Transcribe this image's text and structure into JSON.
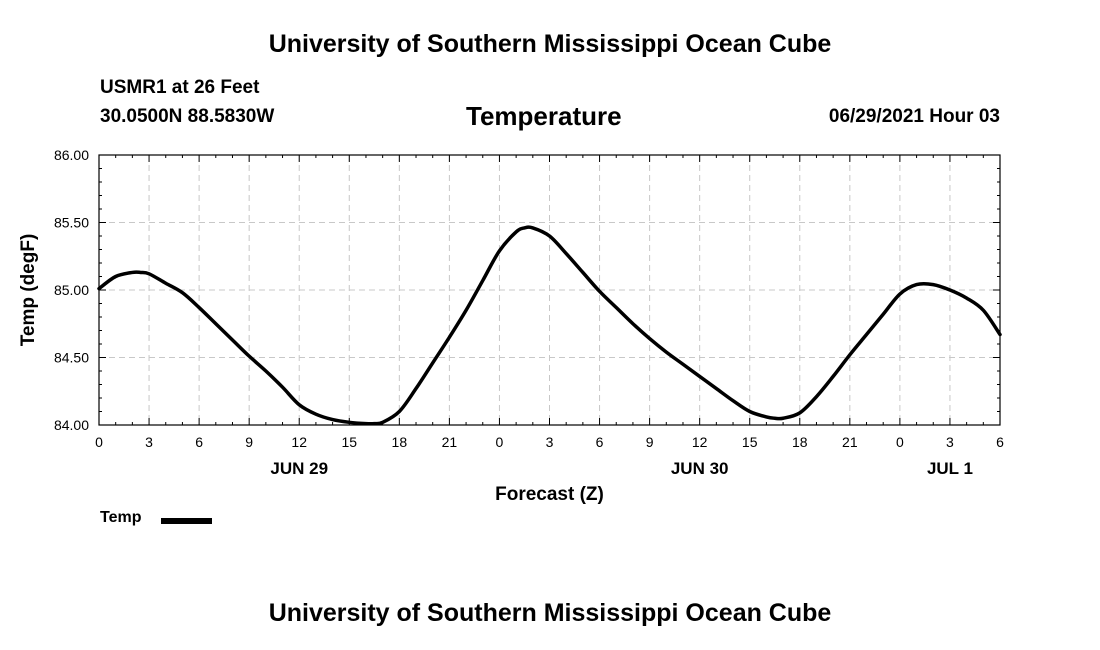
{
  "header": {
    "title": "University of Southern Mississippi Ocean Cube",
    "station": "USMR1 at 26 Feet",
    "coords": "30.0500N  88.5830W",
    "variable": "Temperature",
    "timestamp": "06/29/2021 Hour 03"
  },
  "footer": {
    "title": "University of Southern Mississippi Ocean Cube"
  },
  "legend": {
    "label": "Temp"
  },
  "chart_data": {
    "type": "line",
    "xlabel": "Forecast (Z)",
    "ylabel": "Temp (degF)",
    "xlim": [
      0,
      54
    ],
    "ylim": [
      84.0,
      86.0
    ],
    "yticks": [
      "84.00",
      "84.50",
      "85.00",
      "85.50",
      "86.00"
    ],
    "xticks": [
      "0",
      "3",
      "6",
      "9",
      "12",
      "15",
      "18",
      "21",
      "0",
      "3",
      "6",
      "9",
      "12",
      "15",
      "18",
      "21",
      "0",
      "3",
      "6"
    ],
    "date_labels": [
      {
        "hour": 12,
        "label": "JUN 29"
      },
      {
        "hour": 36,
        "label": "JUN 30"
      },
      {
        "hour": 51,
        "label": "JUL 1"
      }
    ],
    "grid": true,
    "line_color": "#000000",
    "series": [
      {
        "name": "Temp",
        "x": [
          0,
          1,
          2,
          2.5,
          3,
          4,
          5,
          6,
          7,
          8,
          9,
          10,
          11,
          12,
          13,
          14,
          15,
          16,
          16.5,
          17,
          18,
          19,
          20,
          21,
          22,
          23,
          24,
          25,
          25.5,
          26,
          27,
          28,
          29,
          30,
          31,
          32,
          33,
          34,
          35,
          36,
          37,
          38,
          39,
          40,
          40.5,
          41,
          42,
          43,
          44,
          45,
          46,
          47,
          48,
          49,
          50,
          51,
          52,
          53,
          54
        ],
        "y": [
          85.01,
          85.1,
          85.13,
          85.13,
          85.12,
          85.05,
          84.98,
          84.87,
          84.75,
          84.63,
          84.51,
          84.4,
          84.28,
          84.15,
          84.08,
          84.04,
          84.02,
          84.01,
          84.01,
          84.02,
          84.1,
          84.27,
          84.46,
          84.65,
          84.85,
          85.07,
          85.29,
          85.43,
          85.46,
          85.46,
          85.4,
          85.27,
          85.13,
          84.99,
          84.87,
          84.75,
          84.64,
          84.54,
          84.45,
          84.36,
          84.27,
          84.18,
          84.1,
          84.06,
          84.05,
          84.05,
          84.09,
          84.21,
          84.36,
          84.52,
          84.67,
          84.82,
          84.97,
          85.04,
          85.04,
          85.0,
          84.94,
          84.85,
          84.67
        ]
      }
    ]
  }
}
